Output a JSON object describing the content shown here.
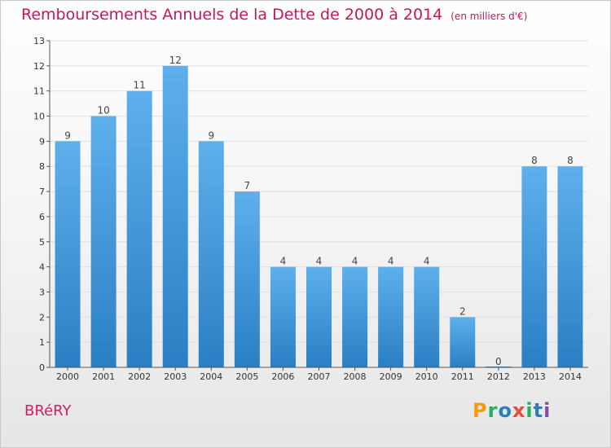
{
  "header": {
    "title": "Remboursements Annuels de la Dette de 2000 à 2014",
    "unit": "(en milliers d'€)"
  },
  "footer": {
    "commune": "BRéRY",
    "logo": "Proxiti"
  },
  "colors": {
    "title": "#c2185b",
    "bar_top": "#5eb0ec",
    "bar_bottom": "#2a7fc4",
    "axis": "#555555",
    "grid": "#e0e0e0",
    "logo_letters": [
      "#f39c12",
      "#27ae60",
      "#2980b9",
      "#e74c3c",
      "#27ae60",
      "#2980b9",
      "#8e44ad"
    ]
  },
  "chart_data": {
    "type": "bar",
    "categories": [
      "2000",
      "2001",
      "2002",
      "2003",
      "2004",
      "2005",
      "2006",
      "2007",
      "2008",
      "2009",
      "2010",
      "2011",
      "2012",
      "2013",
      "2014"
    ],
    "values": [
      9,
      10,
      11,
      12,
      9,
      7,
      4,
      4,
      4,
      4,
      4,
      2,
      0,
      8,
      8
    ],
    "ylim": [
      0,
      13
    ],
    "yticks": [
      0,
      1,
      2,
      3,
      4,
      5,
      6,
      7,
      8,
      9,
      10,
      11,
      12,
      13
    ],
    "grid": true
  }
}
